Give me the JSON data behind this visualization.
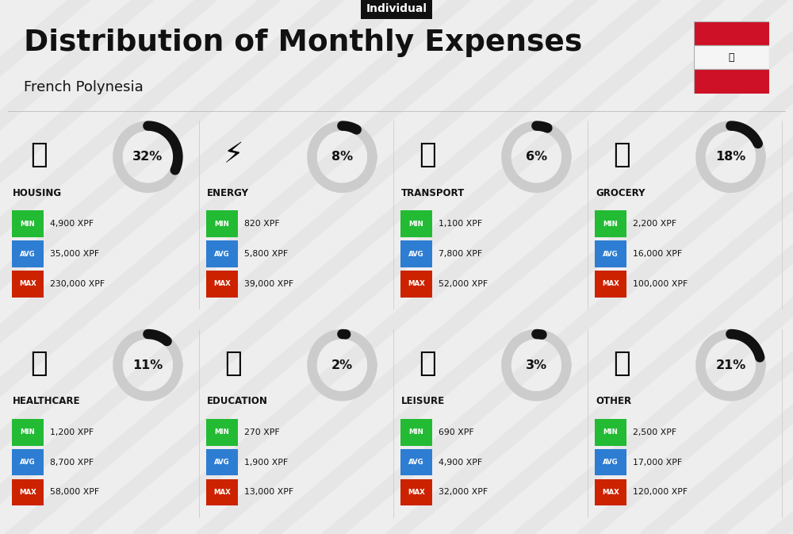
{
  "title": "Distribution of Monthly Expenses",
  "subtitle": "French Polynesia",
  "badge": "Individual",
  "bg_color": "#eeeeee",
  "categories": [
    {
      "name": "HOUSING",
      "pct": 32,
      "min": "4,900 XPF",
      "avg": "35,000 XPF",
      "max": "230,000 XPF",
      "row": 0,
      "col": 0
    },
    {
      "name": "ENERGY",
      "pct": 8,
      "min": "820 XPF",
      "avg": "5,800 XPF",
      "max": "39,000 XPF",
      "row": 0,
      "col": 1
    },
    {
      "name": "TRANSPORT",
      "pct": 6,
      "min": "1,100 XPF",
      "avg": "7,800 XPF",
      "max": "52,000 XPF",
      "row": 0,
      "col": 2
    },
    {
      "name": "GROCERY",
      "pct": 18,
      "min": "2,200 XPF",
      "avg": "16,000 XPF",
      "max": "100,000 XPF",
      "row": 0,
      "col": 3
    },
    {
      "name": "HEALTHCARE",
      "pct": 11,
      "min": "1,200 XPF",
      "avg": "8,700 XPF",
      "max": "58,000 XPF",
      "row": 1,
      "col": 0
    },
    {
      "name": "EDUCATION",
      "pct": 2,
      "min": "270 XPF",
      "avg": "1,900 XPF",
      "max": "13,000 XPF",
      "row": 1,
      "col": 1
    },
    {
      "name": "LEISURE",
      "pct": 3,
      "min": "690 XPF",
      "avg": "4,900 XPF",
      "max": "32,000 XPF",
      "row": 1,
      "col": 2
    },
    {
      "name": "OTHER",
      "pct": 21,
      "min": "2,500 XPF",
      "avg": "17,000 XPF",
      "max": "120,000 XPF",
      "row": 1,
      "col": 3
    }
  ],
  "color_min": "#22bb33",
  "color_avg": "#2d7dd2",
  "color_max": "#cc2200",
  "arc_color_filled": "#111111",
  "arc_color_empty": "#cccccc",
  "text_color": "#111111",
  "flag_top": "#CE1126",
  "flag_mid": "#F5F5F5",
  "flag_bot": "#CE1126"
}
